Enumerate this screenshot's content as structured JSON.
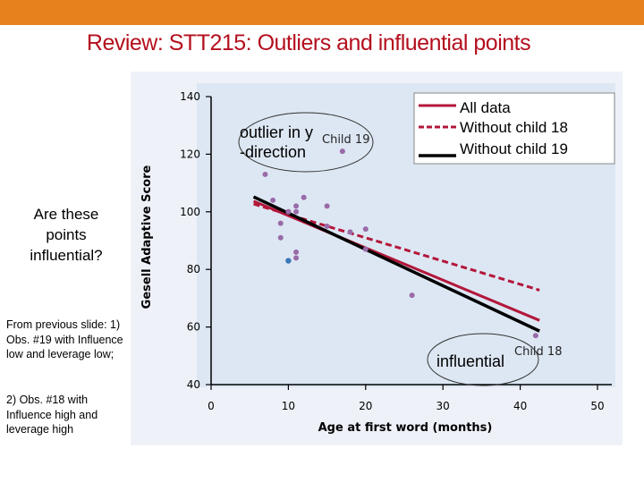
{
  "slide": {
    "title": "Review: STT215: Outliers and influential points",
    "question": "Are these points influential?",
    "note1": "From previous slide: 1) Obs. #19 with Influence low and leverage low;",
    "note2": "2) Obs. #18 with Influence high and leverage high",
    "colors": {
      "topbar": "#e6821e",
      "title": "#b40f1e"
    }
  },
  "chart_data": {
    "type": "scatter",
    "xlabel": "Age at first word (months)",
    "ylabel": "Gesell Adaptive Score",
    "xlim": [
      0,
      50
    ],
    "ylim": [
      40,
      140
    ],
    "xticks": [
      0,
      10,
      20,
      30,
      40,
      50
    ],
    "yticks": [
      40,
      60,
      80,
      100,
      120,
      140
    ],
    "points": [
      {
        "x": 15,
        "y": 95
      },
      {
        "x": 26,
        "y": 71
      },
      {
        "x": 10,
        "y": 83
      },
      {
        "x": 9,
        "y": 91
      },
      {
        "x": 15,
        "y": 102
      },
      {
        "x": 20,
        "y": 87
      },
      {
        "x": 18,
        "y": 93
      },
      {
        "x": 11,
        "y": 100
      },
      {
        "x": 8,
        "y": 104
      },
      {
        "x": 20,
        "y": 94
      },
      {
        "x": 7,
        "y": 113
      },
      {
        "x": 9,
        "y": 96
      },
      {
        "x": 10,
        "y": 83
      },
      {
        "x": 11,
        "y": 84
      },
      {
        "x": 11,
        "y": 102
      },
      {
        "x": 10,
        "y": 100
      },
      {
        "x": 12,
        "y": 105
      },
      {
        "x": 42,
        "y": 57
      },
      {
        "x": 17,
        "y": 121
      },
      {
        "x": 11,
        "y": 86
      },
      {
        "x": 10,
        "y": 100
      }
    ],
    "highlight_point": {
      "x": 10,
      "y": 83
    },
    "series": [
      {
        "name": "All data",
        "style": "solid",
        "color": "#b3173b",
        "x": [
          5.5,
          42.5
        ],
        "y": [
          103.7,
          62.3
        ]
      },
      {
        "name": "Without child 18",
        "style": "dashed",
        "color": "#b3173b",
        "x": [
          5.5,
          42.5
        ],
        "y": [
          102.7,
          72.8
        ]
      },
      {
        "name": "Without child 19",
        "style": "solid",
        "color": "#000000",
        "x": [
          5.5,
          42.5
        ],
        "y": [
          105.2,
          58.6
        ]
      }
    ],
    "annotations": {
      "child19": "Child 19",
      "child18": "Child 18",
      "outlier_line1": "outlier in y",
      "outlier_line2": "-direction",
      "influential": "influential"
    },
    "legend_position": "top-right",
    "colors": {
      "panel": "#dde7f3",
      "point": "#9a6aa8",
      "highlight": "#3a78b8"
    }
  }
}
